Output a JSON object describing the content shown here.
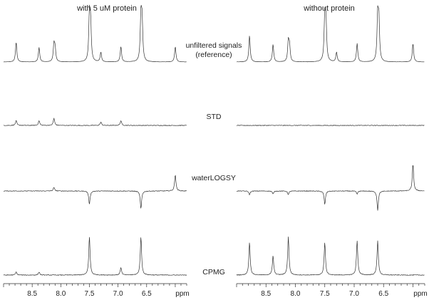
{
  "figure": {
    "left_title": "with 5 uM protein",
    "right_title": "without protein",
    "row_labels": [
      [
        "unfiltered signals",
        "(reference)"
      ],
      [
        "STD"
      ],
      [
        "waterLOGSY"
      ],
      [
        "CPMG"
      ]
    ],
    "axis_unit": "ppm"
  },
  "chart_data": {
    "type": "line",
    "title": "",
    "xlabel": "ppm",
    "ylabel": "",
    "xlim": [
      9.0,
      5.8
    ],
    "x_reversed": true,
    "x_ticks": [
      8.5,
      8.0,
      7.5,
      7.0,
      6.5
    ],
    "x_tick_labels": [
      "8.5",
      "8.0",
      "7.5",
      "7.0",
      "6.5"
    ],
    "grid": false,
    "panels": [
      "with 5 uM protein",
      "without protein"
    ],
    "rows": [
      "unfiltered signals (reference)",
      "STD",
      "waterLOGSY",
      "CPMG"
    ],
    "series": [
      {
        "panel": "with 5 uM protein",
        "row": "unfiltered signals (reference)",
        "peaks": [
          [
            8.78,
            0.45
          ],
          [
            8.38,
            0.33
          ],
          [
            8.12,
            0.38
          ],
          [
            8.1,
            0.3
          ],
          [
            7.5,
            1.0
          ],
          [
            7.48,
            0.85
          ],
          [
            7.3,
            0.22
          ],
          [
            6.95,
            0.35
          ],
          [
            6.6,
            1.0
          ],
          [
            6.58,
            0.9
          ],
          [
            6.0,
            0.35
          ]
        ]
      },
      {
        "panel": "without protein",
        "row": "unfiltered signals (reference)",
        "peaks": [
          [
            8.78,
            0.6
          ],
          [
            8.38,
            0.4
          ],
          [
            8.12,
            0.45
          ],
          [
            8.1,
            0.35
          ],
          [
            7.5,
            1.0
          ],
          [
            7.48,
            0.85
          ],
          [
            7.3,
            0.22
          ],
          [
            6.95,
            0.42
          ],
          [
            6.6,
            1.0
          ],
          [
            6.58,
            0.9
          ],
          [
            6.0,
            0.42
          ]
        ]
      },
      {
        "panel": "with 5 uM protein",
        "row": "STD",
        "peaks": [
          [
            8.78,
            0.28
          ],
          [
            8.38,
            0.28
          ],
          [
            8.12,
            0.42
          ],
          [
            7.3,
            0.2
          ],
          [
            6.95,
            0.28
          ]
        ]
      },
      {
        "panel": "without protein",
        "row": "STD",
        "peaks": []
      },
      {
        "panel": "with 5 uM protein",
        "row": "waterLOGSY",
        "peaks": [
          [
            8.12,
            0.12
          ],
          [
            7.5,
            -0.45
          ],
          [
            6.6,
            -0.6
          ],
          [
            6.0,
            0.55
          ]
        ]
      },
      {
        "panel": "without protein",
        "row": "waterLOGSY",
        "peaks": [
          [
            8.78,
            -0.12
          ],
          [
            8.38,
            -0.1
          ],
          [
            8.12,
            -0.12
          ],
          [
            7.5,
            -0.45
          ],
          [
            6.95,
            -0.1
          ],
          [
            6.6,
            -0.65
          ],
          [
            6.0,
            0.9
          ]
        ]
      },
      {
        "panel": "with 5 uM protein",
        "row": "CPMG",
        "peaks": [
          [
            8.78,
            0.08
          ],
          [
            8.38,
            0.08
          ],
          [
            7.5,
            1.0
          ],
          [
            6.95,
            0.2
          ],
          [
            6.6,
            1.0
          ]
        ]
      },
      {
        "panel": "without protein",
        "row": "CPMG",
        "peaks": [
          [
            8.78,
            0.85
          ],
          [
            8.38,
            0.5
          ],
          [
            8.12,
            1.0
          ],
          [
            7.5,
            0.85
          ],
          [
            6.95,
            0.9
          ],
          [
            6.6,
            0.9
          ]
        ]
      }
    ]
  }
}
